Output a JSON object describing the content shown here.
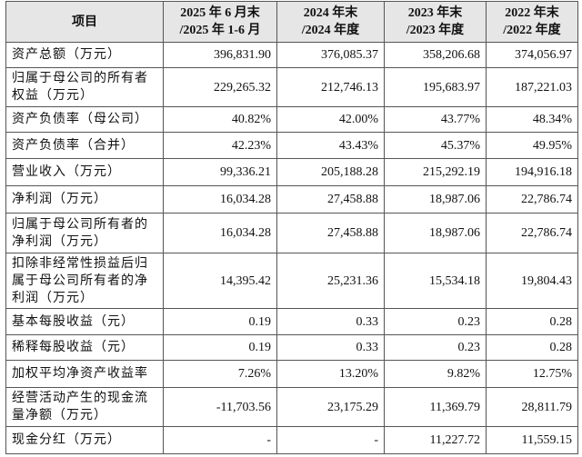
{
  "table": {
    "header": [
      [
        "项目"
      ],
      [
        "2025 年 6 月末",
        "/2025 年 1-6 月"
      ],
      [
        "2024 年末",
        "/2024 年度"
      ],
      [
        "2023 年末",
        "/2023 年度"
      ],
      [
        "2022 年末",
        "/2022 年度"
      ]
    ],
    "rows": [
      [
        "资产总额（万元）",
        "396,831.90",
        "376,085.37",
        "358,206.68",
        "374,056.97"
      ],
      [
        "归属于母公司的所有者权益（万元）",
        "229,265.32",
        "212,746.13",
        "195,683.97",
        "187,221.03"
      ],
      [
        "资产负债率（母公司）",
        "40.82%",
        "42.00%",
        "43.77%",
        "48.34%"
      ],
      [
        "资产负债率（合并）",
        "42.23%",
        "43.43%",
        "45.37%",
        "49.95%"
      ],
      [
        "营业收入（万元）",
        "99,336.21",
        "205,188.28",
        "215,292.19",
        "194,916.18"
      ],
      [
        "净利润（万元）",
        "16,034.28",
        "27,458.88",
        "18,987.06",
        "22,786.74"
      ],
      [
        "归属于母公司所有者的净利润（万元）",
        "16,034.28",
        "27,458.88",
        "18,987.06",
        "22,786.74"
      ],
      [
        "扣除非经常性损益后归属于母公司所有者的净利润（万元）",
        "14,395.42",
        "25,231.36",
        "15,534.18",
        "19,804.43"
      ],
      [
        "基本每股收益（元）",
        "0.19",
        "0.33",
        "0.23",
        "0.28"
      ],
      [
        "稀释每股收益（元）",
        "0.19",
        "0.33",
        "0.23",
        "0.28"
      ],
      [
        "加权平均净资产收益率",
        "7.26%",
        "13.20%",
        "9.82%",
        "12.75%"
      ],
      [
        "经营活动产生的现金流量净额（万元）",
        "-11,703.56",
        "23,175.29",
        "11,369.79",
        "28,811.79"
      ],
      [
        "现金分红（万元）",
        "-",
        "-",
        "11,227.72",
        "11,559.15"
      ]
    ]
  }
}
